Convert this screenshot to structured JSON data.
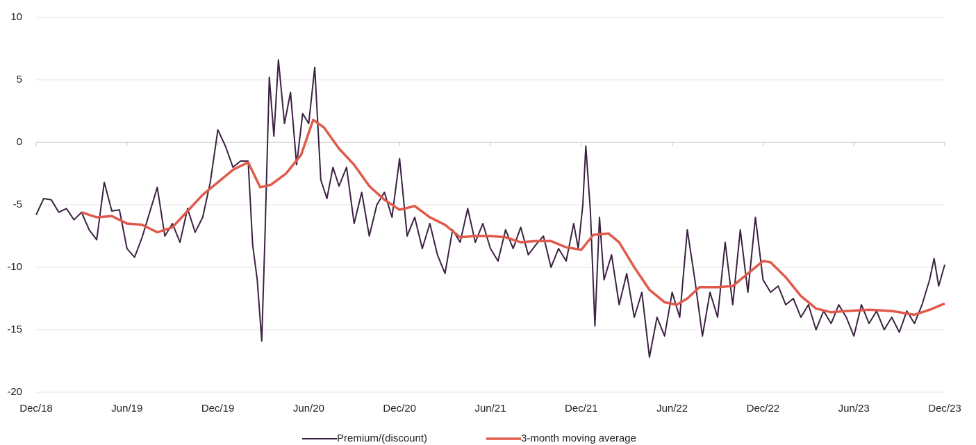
{
  "chart_data": {
    "type": "line",
    "xlim": [
      0,
      60
    ],
    "xticks": [
      {
        "value": 0,
        "label": "Dec/18"
      },
      {
        "value": 6,
        "label": "Jun/19"
      },
      {
        "value": 12,
        "label": "Dec/19"
      },
      {
        "value": 18,
        "label": "Jun/20"
      },
      {
        "value": 24,
        "label": "Dec/20"
      },
      {
        "value": 30,
        "label": "Jun/21"
      },
      {
        "value": 36,
        "label": "Dec/21"
      },
      {
        "value": 42,
        "label": "Jun/22"
      },
      {
        "value": 48,
        "label": "Dec/22"
      },
      {
        "value": 54,
        "label": "Jun/23"
      },
      {
        "value": 60,
        "label": "Dec/23"
      }
    ],
    "ylim": [
      -20,
      10
    ],
    "yticks": [
      -20,
      -15,
      -10,
      -5,
      0,
      5,
      10
    ],
    "grid": true,
    "series": [
      {
        "name": "Premium/(discount)",
        "color": "#3b2140",
        "x": [
          0,
          0.5,
          1,
          1.5,
          2,
          2.5,
          3,
          3.5,
          4,
          4.5,
          5,
          5.5,
          6,
          6.5,
          7,
          7.5,
          8,
          8.5,
          9,
          9.5,
          10,
          10.5,
          11,
          11.5,
          12,
          12.5,
          13,
          13.5,
          14,
          14.3,
          14.6,
          14.9,
          15.1,
          15.4,
          15.7,
          16,
          16.4,
          16.8,
          17.2,
          17.6,
          18,
          18.4,
          18.8,
          19.2,
          19.6,
          20,
          20.5,
          21,
          21.5,
          22,
          22.5,
          23,
          23.5,
          24,
          24.5,
          25,
          25.5,
          26,
          26.5,
          27,
          27.5,
          28,
          28.5,
          29,
          29.5,
          30,
          30.5,
          31,
          31.5,
          32,
          32.5,
          33,
          33.5,
          34,
          34.5,
          35,
          35.5,
          35.8,
          36.1,
          36.3,
          36.6,
          36.9,
          37.2,
          37.5,
          38,
          38.5,
          39,
          39.5,
          40,
          40.5,
          41,
          41.5,
          42,
          42.5,
          43,
          43.5,
          44,
          44.5,
          45,
          45.5,
          46,
          46.5,
          47,
          47.5,
          48,
          48.5,
          49,
          49.5,
          50,
          50.5,
          51,
          51.5,
          52,
          52.5,
          53,
          53.5,
          54,
          54.5,
          55,
          55.5,
          56,
          56.5,
          57,
          57.5,
          58,
          58.5,
          59,
          59.3,
          59.6,
          60
        ],
        "values": [
          -5.8,
          -4.5,
          -4.6,
          -5.6,
          -5.3,
          -6.2,
          -5.6,
          -7.0,
          -7.8,
          -3.2,
          -5.5,
          -5.4,
          -8.5,
          -9.2,
          -7.6,
          -5.6,
          -3.6,
          -7.5,
          -6.5,
          -8.0,
          -5.3,
          -7.2,
          -6.0,
          -3.2,
          1.0,
          -0.3,
          -2.0,
          -1.5,
          -1.5,
          -8.2,
          -11,
          -15.9,
          -8,
          5.2,
          0.5,
          6.6,
          1.5,
          4,
          -1.8,
          2.3,
          1.5,
          6.0,
          -3,
          -4.5,
          -2,
          -3.5,
          -2,
          -6.5,
          -4,
          -7.5,
          -5,
          -4,
          -6,
          -1.3,
          -7.5,
          -6,
          -8.5,
          -6.5,
          -9,
          -10.5,
          -7,
          -8,
          -5.3,
          -8,
          -6.5,
          -8.5,
          -9.5,
          -7,
          -8.5,
          -6.8,
          -9,
          -8.2,
          -7.5,
          -10,
          -8.5,
          -9.5,
          -6.5,
          -8.5,
          -5,
          -0.3,
          -5.5,
          -14.7,
          -6,
          -11,
          -9,
          -13,
          -10.5,
          -14,
          -12,
          -17.2,
          -14,
          -15.5,
          -12,
          -14,
          -7,
          -11,
          -15.5,
          -12,
          -14,
          -8,
          -13,
          -7,
          -12,
          -6,
          -11,
          -12,
          -11.5,
          -13,
          -12.5,
          -14,
          -13,
          -15,
          -13.5,
          -14.5,
          -13,
          -14,
          -15.5,
          -13,
          -14.5,
          -13.5,
          -15,
          -14,
          -15.2,
          -13.5,
          -14.5,
          -13,
          -11,
          -9.3,
          -11.5,
          -9.8
        ]
      },
      {
        "name": "3-month moving average",
        "color": "#e0594b",
        "x": [
          3,
          4,
          5,
          6,
          7,
          8,
          9,
          10,
          11,
          12,
          13,
          14,
          14.8,
          15.5,
          16.5,
          17.5,
          18.3,
          19,
          20,
          21,
          22,
          23,
          24,
          25,
          26,
          27,
          28,
          29,
          30,
          31,
          32,
          33,
          34,
          35,
          36,
          36.8,
          37.8,
          38.5,
          39.5,
          40.5,
          41.5,
          42.3,
          43,
          43.8,
          45,
          46,
          47,
          48,
          48.5,
          49.5,
          50.5,
          51.5,
          52.5,
          53.5,
          55,
          56.5,
          58,
          59,
          60
        ],
        "values": [
          -5.6,
          -6.0,
          -5.9,
          -6.5,
          -6.6,
          -7.2,
          -6.8,
          -5.5,
          -4.2,
          -3.2,
          -2.2,
          -1.6,
          -3.6,
          -3.4,
          -2.5,
          -1.0,
          1.8,
          1.2,
          -0.5,
          -1.8,
          -3.5,
          -4.6,
          -5.4,
          -5.1,
          -6.0,
          -6.6,
          -7.6,
          -7.5,
          -7.5,
          -7.6,
          -8.0,
          -7.9,
          -7.9,
          -8.4,
          -8.6,
          -7.4,
          -7.3,
          -8.0,
          -10,
          -11.8,
          -12.8,
          -13.0,
          -12.5,
          -11.6,
          -11.6,
          -11.5,
          -10.5,
          -9.5,
          -9.6,
          -10.8,
          -12.3,
          -13.3,
          -13.6,
          -13.5,
          -13.4,
          -13.5,
          -13.8,
          -13.4,
          -12.9
        ]
      }
    ]
  }
}
